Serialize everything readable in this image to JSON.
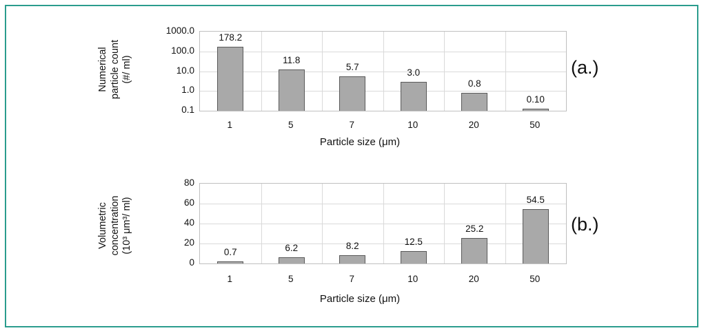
{
  "frame": {
    "border_color": "#2a9c8d"
  },
  "chart_data": [
    {
      "type": "bar",
      "panel_label": "(a.)",
      "categories": [
        "1",
        "5",
        "7",
        "10",
        "20",
        "50"
      ],
      "values": [
        178.2,
        11.8,
        5.7,
        3.0,
        0.8,
        0.1
      ],
      "value_labels": [
        "178.2",
        "11.8",
        "5.7",
        "3.0",
        "0.8",
        "0.10"
      ],
      "xlabel": "Particle size (μm)",
      "ylabel_lines": [
        "Numerical",
        "particle count",
        "(#/ ml)"
      ],
      "yscale": "log",
      "ylim": [
        0.1,
        1000
      ],
      "ytick_labels": [
        "1000.0",
        "100.0",
        "10.0",
        "1.0",
        "0.1"
      ],
      "ytick_values": [
        1000,
        100,
        10,
        1,
        0.1
      ],
      "grid": true,
      "legend_position": "none",
      "bar_fill": "#a9a9a9",
      "bar_stroke": "#595959"
    },
    {
      "type": "bar",
      "panel_label": "(b.)",
      "categories": [
        "1",
        "5",
        "7",
        "10",
        "20",
        "50"
      ],
      "values": [
        0.7,
        6.2,
        8.2,
        12.5,
        25.2,
        54.5
      ],
      "value_labels": [
        "0.7",
        "6.2",
        "8.2",
        "12.5",
        "25.2",
        "54.5"
      ],
      "xlabel": "Particle size (μm)",
      "ylabel_lines": [
        "Volumetric",
        "concentration",
        "(10³ μm³/ ml)"
      ],
      "yscale": "linear",
      "ylim": [
        0,
        80
      ],
      "ytick_labels": [
        "80",
        "60",
        "40",
        "20",
        "0"
      ],
      "ytick_values": [
        80,
        60,
        40,
        20,
        0
      ],
      "grid": true,
      "legend_position": "none",
      "bar_fill": "#a9a9a9",
      "bar_stroke": "#595959"
    }
  ]
}
